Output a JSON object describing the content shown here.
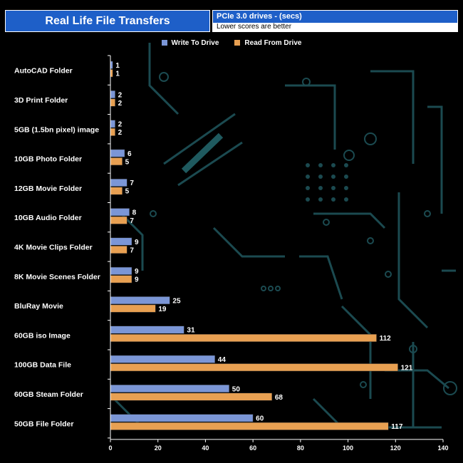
{
  "chart_data": {
    "type": "bar",
    "orientation": "horizontal",
    "title": "Real Life File Transfers",
    "subtitle": "PCIe 3.0 drives - (secs)",
    "note": "Lower scores are better",
    "categories": [
      "AutoCAD Folder",
      "3D Print Folder",
      "5GB (1.5bn pixel) image",
      "10GB Photo Folder",
      "12GB Movie Folder",
      "10GB Audio Folder",
      "4K Movie Clips Folder",
      "8K Movie Scenes Folder",
      "BluRay Movie",
      "60GB iso Image",
      "100GB Data File",
      "60GB Steam Folder",
      "50GB File Folder"
    ],
    "series": [
      {
        "name": "Write To  Drive",
        "color": "#7b96d6",
        "values": [
          1,
          2,
          2,
          6,
          7,
          8,
          9,
          9,
          25,
          31,
          44,
          50,
          60
        ]
      },
      {
        "name": "Read From  Drive",
        "color": "#e8a052",
        "values": [
          1,
          2,
          2,
          5,
          5,
          7,
          7,
          9,
          19,
          112,
          121,
          68,
          117
        ]
      }
    ],
    "xlim": [
      0,
      140
    ],
    "xticks": [
      0,
      20,
      40,
      60,
      80,
      100,
      120,
      140
    ],
    "legend_position": "top"
  }
}
